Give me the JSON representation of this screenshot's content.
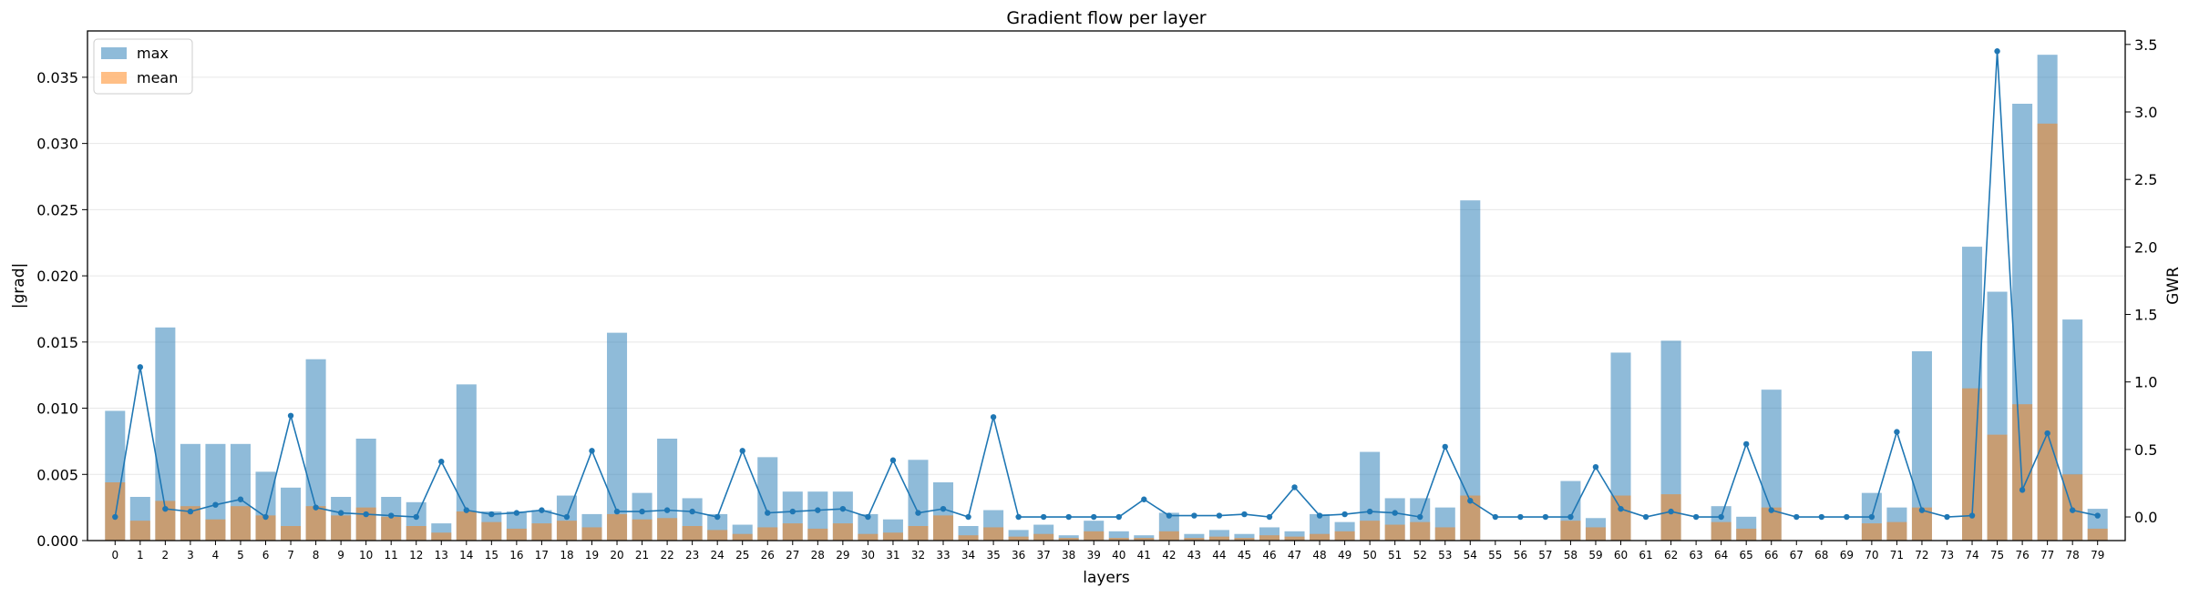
{
  "chart_data": {
    "type": "bar",
    "title": "Gradient flow per layer",
    "xlabel": "layers",
    "ylabel": "|grad|",
    "y2label": "GWR",
    "ylim": [
      0,
      0.0385
    ],
    "y2lim": [
      -0.175,
      3.6
    ],
    "yticks": [
      "0.000",
      "0.005",
      "0.010",
      "0.015",
      "0.020",
      "0.025",
      "0.030",
      "0.035"
    ],
    "y2ticks": [
      "0.0",
      "0.5",
      "1.0",
      "1.5",
      "2.0",
      "2.5",
      "3.0",
      "3.5"
    ],
    "grid": "horizontal",
    "legend_position": "top-left",
    "colors": {
      "max": "#1f77b4",
      "mean": "#ff7f0e",
      "gwr": "#1f77b4"
    },
    "categories": [
      "0",
      "1",
      "2",
      "3",
      "4",
      "5",
      "6",
      "7",
      "8",
      "9",
      "10",
      "11",
      "12",
      "13",
      "14",
      "15",
      "16",
      "17",
      "18",
      "19",
      "20",
      "21",
      "22",
      "23",
      "24",
      "25",
      "26",
      "27",
      "28",
      "29",
      "30",
      "31",
      "32",
      "33",
      "34",
      "35",
      "36",
      "37",
      "38",
      "39",
      "40",
      "41",
      "42",
      "43",
      "44",
      "45",
      "46",
      "47",
      "48",
      "49",
      "50",
      "51",
      "52",
      "53",
      "54",
      "55",
      "56",
      "57",
      "58",
      "59",
      "60",
      "61",
      "62",
      "63",
      "64",
      "65",
      "66",
      "67",
      "68",
      "69",
      "70",
      "71",
      "72",
      "73",
      "74",
      "75",
      "76",
      "77",
      "78",
      "79"
    ],
    "series": [
      {
        "name": "max",
        "values": [
          0.0098,
          0.0033,
          0.0161,
          0.0073,
          0.0073,
          0.0073,
          0.0052,
          0.004,
          0.0137,
          0.0033,
          0.0077,
          0.0033,
          0.0029,
          0.0013,
          0.0118,
          0.0022,
          0.0022,
          0.0023,
          0.0034,
          0.002,
          0.0157,
          0.0036,
          0.0077,
          0.0032,
          0.002,
          0.0012,
          0.0063,
          0.0037,
          0.0037,
          0.0037,
          0.002,
          0.0016,
          0.0061,
          0.0044,
          0.0011,
          0.0023,
          0.0008,
          0.0012,
          0.0004,
          0.0015,
          0.0007,
          0.0004,
          0.0021,
          0.0005,
          0.0008,
          0.0005,
          0.001,
          0.0007,
          0.002,
          0.0014,
          0.0067,
          0.0032,
          0.0032,
          0.0025,
          0.0257,
          0,
          0,
          0,
          0.0045,
          0.0017,
          0.0142,
          0,
          0.0151,
          0,
          0.0026,
          0.0018,
          0.0114,
          0,
          0,
          0,
          0.0036,
          0.0025,
          0.0143,
          0,
          0.0222,
          0.0188,
          0.033,
          0.0367,
          0.0167,
          0.0024
        ]
      },
      {
        "name": "mean",
        "values": [
          0.0044,
          0.0015,
          0.003,
          0.0026,
          0.0016,
          0.0026,
          0.0019,
          0.0011,
          0.0026,
          0.0019,
          0.0025,
          0.0018,
          0.0011,
          0.0006,
          0.0022,
          0.0014,
          0.0009,
          0.0013,
          0.0015,
          0.001,
          0.002,
          0.0016,
          0.0017,
          0.0011,
          0.0008,
          0.0005,
          0.001,
          0.0013,
          0.0009,
          0.0013,
          0.0005,
          0.0006,
          0.0011,
          0.0019,
          0.0004,
          0.001,
          0.0003,
          0.0005,
          0.0002,
          0.0007,
          0.0002,
          0.0002,
          0.0007,
          0.0002,
          0.0003,
          0.0002,
          0.0004,
          0.0003,
          0.0005,
          0.0007,
          0.0015,
          0.0012,
          0.0014,
          0.001,
          0.0034,
          0,
          0,
          0,
          0.0015,
          0.001,
          0.0034,
          0,
          0.0035,
          0,
          0.0014,
          0.0009,
          0.0025,
          0,
          0,
          0,
          0.0013,
          0.0014,
          0.0025,
          0,
          0.0115,
          0.008,
          0.0103,
          0.0315,
          0.005,
          0.0009
        ]
      },
      {
        "name": "GWR",
        "axis": "right",
        "style": "line",
        "values": [
          0.0,
          1.11,
          0.06,
          0.04,
          0.09,
          0.13,
          0.0,
          0.75,
          0.07,
          0.03,
          0.02,
          0.01,
          0.0,
          0.41,
          0.05,
          0.02,
          0.03,
          0.05,
          0.0,
          0.49,
          0.04,
          0.04,
          0.05,
          0.04,
          0.0,
          0.49,
          0.03,
          0.04,
          0.05,
          0.06,
          0.0,
          0.42,
          0.03,
          0.06,
          0.0,
          0.74,
          0.0,
          0.0,
          0.0,
          0.0,
          0.0,
          0.13,
          0.01,
          0.01,
          0.01,
          0.02,
          0.0,
          0.22,
          0.01,
          0.02,
          0.04,
          0.03,
          0.0,
          0.52,
          0.12,
          0.0,
          0.0,
          0.0,
          0.0,
          0.37,
          0.06,
          0.0,
          0.04,
          0.0,
          0.0,
          0.54,
          0.05,
          0.0,
          0.0,
          0.0,
          0.0,
          0.63,
          0.05,
          0.0,
          0.01,
          3.45,
          0.2,
          0.62,
          0.05,
          0.01
        ]
      }
    ]
  }
}
